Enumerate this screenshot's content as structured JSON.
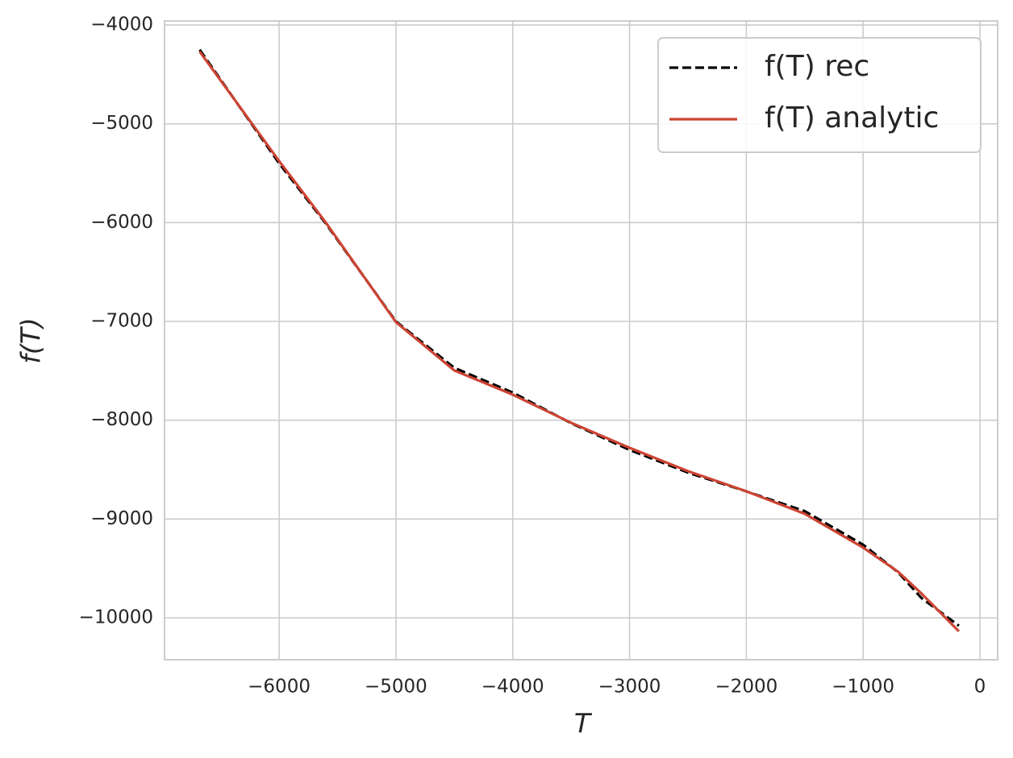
{
  "chart_data": {
    "type": "line",
    "xlabel": "T",
    "ylabel": "f(T)",
    "x": [
      -6680,
      -6000,
      -5600,
      -5000,
      -4500,
      -4000,
      -3500,
      -3000,
      -2500,
      -2000,
      -1500,
      -1000,
      -700,
      -500,
      -180
    ],
    "series": [
      {
        "name": "f(T) rec",
        "color": "#000000",
        "dashed": true,
        "values": [
          -4250,
          -5400,
          -6010,
          -7000,
          -7470,
          -7720,
          -8030,
          -8300,
          -8530,
          -8720,
          -8920,
          -9260,
          -9540,
          -9800,
          -10080
        ]
      },
      {
        "name": "f(T) analytic",
        "color": "#cc4433",
        "dashed": false,
        "values": [
          -4269,
          -5377,
          -6000,
          -7007,
          -7496,
          -7741,
          -8026,
          -8279,
          -8515,
          -8719,
          -8947,
          -9289,
          -9534,
          -9754,
          -10137
        ]
      }
    ],
    "xlim": [
      -6981,
      152
    ],
    "ylim": [
      -10424,
      -3959
    ],
    "xticks": [
      {
        "value": -6000,
        "label": "−6000"
      },
      {
        "value": -5000,
        "label": "−5000"
      },
      {
        "value": -4000,
        "label": "−4000"
      },
      {
        "value": -3000,
        "label": "−3000"
      },
      {
        "value": -2000,
        "label": "−2000"
      },
      {
        "value": -1000,
        "label": "−1000"
      },
      0
    ],
    "yticks": [
      {
        "value": -4000,
        "label": "−4000"
      },
      {
        "value": -5000,
        "label": "−5000"
      },
      {
        "value": -6000,
        "label": "−6000"
      },
      {
        "value": -7000,
        "label": "−7000"
      },
      {
        "value": -8000,
        "label": "−8000"
      },
      {
        "value": -9000,
        "label": "−9000"
      },
      {
        "value": -10000,
        "label": "−10000"
      }
    ],
    "grid": true,
    "legend": "upper right"
  }
}
